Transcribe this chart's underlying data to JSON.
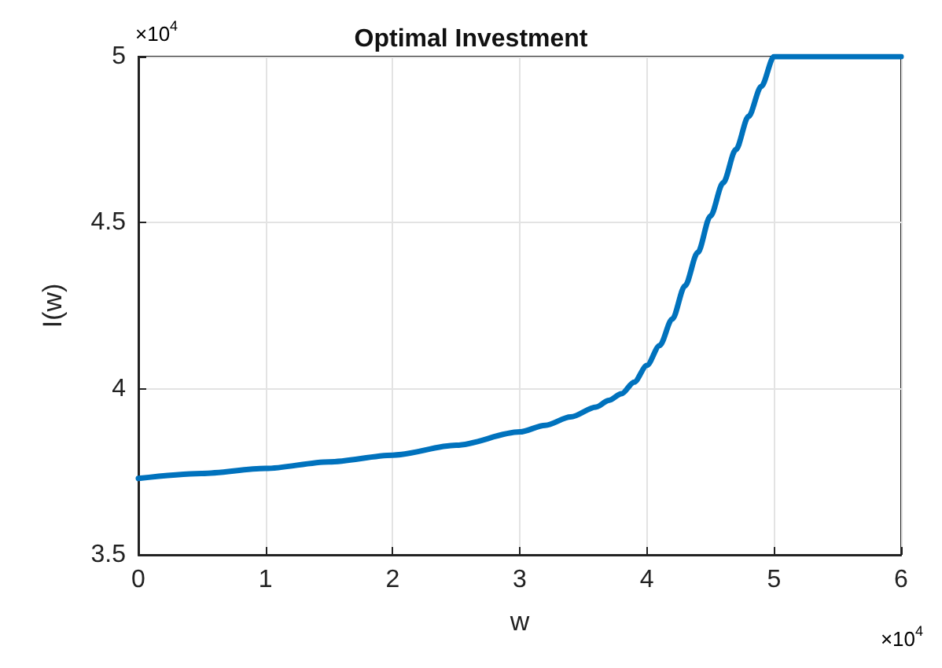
{
  "chart_data": {
    "type": "line",
    "title": "Optimal Investment",
    "xlabel": "w",
    "ylabel": "I(w)",
    "x": [
      0,
      0.5,
      1,
      1.5,
      2,
      2.5,
      3,
      3.2,
      3.4,
      3.6,
      3.7,
      3.8,
      3.9,
      4,
      4.1,
      4.2,
      4.3,
      4.4,
      4.5,
      4.6,
      4.7,
      4.8,
      4.9,
      5,
      6
    ],
    "series": [
      {
        "color": "#0072bd",
        "values": [
          3.73,
          3.745,
          3.76,
          3.78,
          3.8,
          3.83,
          3.87,
          3.89,
          3.915,
          3.945,
          3.965,
          3.985,
          4.02,
          4.07,
          4.13,
          4.21,
          4.31,
          4.41,
          4.52,
          4.62,
          4.72,
          4.82,
          4.91,
          5,
          5
        ]
      }
    ],
    "xlim": [
      0,
      6
    ],
    "ylim": [
      3.5,
      5
    ],
    "xticks": [
      0,
      1,
      2,
      3,
      4,
      5,
      6
    ],
    "yticks": [
      3.5,
      4,
      4.5,
      5
    ],
    "annotations": [
      "×10$^{4}$",
      "×10$^{4}$"
    ],
    "grid": true,
    "marker": "none",
    "line_style": "solid"
  }
}
